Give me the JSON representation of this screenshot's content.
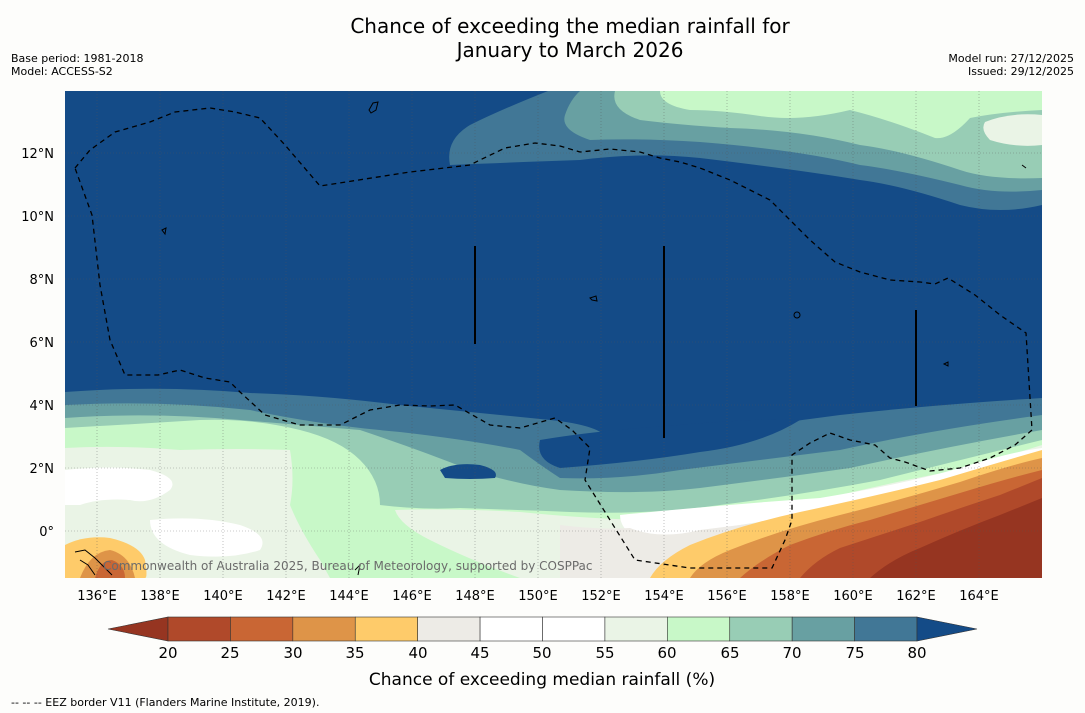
{
  "title": {
    "line1": "Chance of exceeding the median rainfall for",
    "line2": "January to March 2026"
  },
  "meta_left": {
    "base_period": "Base period: 1981-2018",
    "model": "Model: ACCESS-S2"
  },
  "meta_right": {
    "model_run": "Model run: 27/12/2025",
    "issued": "Issued: 29/12/2025"
  },
  "map": {
    "lat_labels": [
      "12°N",
      "10°N",
      "8°N",
      "6°N",
      "4°N",
      "2°N",
      "0°"
    ],
    "lon_labels": [
      "136°E",
      "138°E",
      "140°E",
      "142°E",
      "144°E",
      "146°E",
      "148°E",
      "150°E",
      "152°E",
      "154°E",
      "156°E",
      "158°E",
      "160°E",
      "162°E",
      "164°E"
    ],
    "copyright": "Commonwealth of Australia 2025, Bureau of Meteorology, supported by COSPPac"
  },
  "colorbar": {
    "ticks": [
      "20",
      "25",
      "30",
      "35",
      "40",
      "45",
      "50",
      "55",
      "60",
      "65",
      "70",
      "75",
      "80"
    ],
    "colors": [
      "#b0492a",
      "#c96634",
      "#de9448",
      "#fecb6a",
      "#edebe6",
      "#ffffff",
      "#ffffff",
      "#eaf4e6",
      "#c8f8c8",
      "#98cdb5",
      "#68a0a2",
      "#417796"
    ],
    "low_color": "#963521",
    "high_color": "#144b87",
    "label": "Chance of exceeding median rainfall (%)"
  },
  "legend_note": "-- -- -- EEZ border V11 (Flanders Marine Institute, 2019)."
}
